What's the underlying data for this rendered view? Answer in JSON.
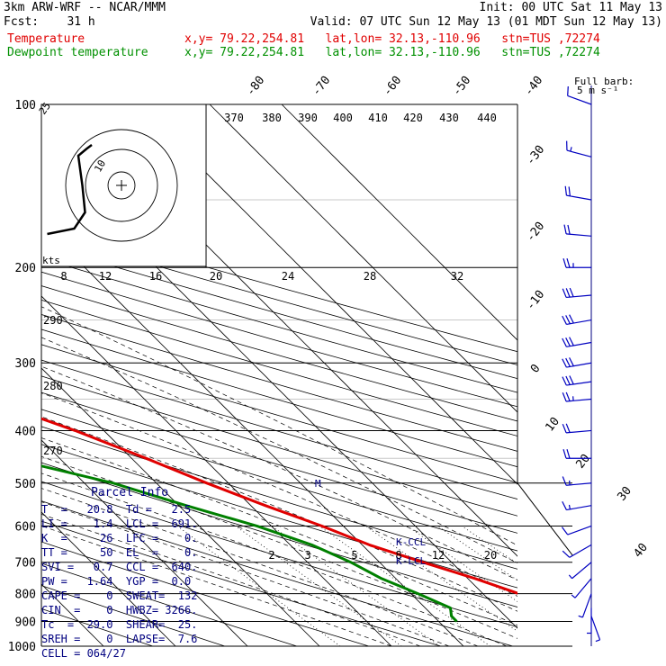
{
  "header": {
    "line1_left": "3km ARW-WRF -- NCAR/MMM",
    "line1_right": "Init: 00 UTC Sat 11 May 13",
    "line2_left": "Fcst:    31 h",
    "line2_right": "Valid: 07 UTC Sun 12 May 13 (01 MDT Sun 12 May 13)",
    "temp_label": "Temperature",
    "temp_info": "x,y= 79.22,254.81   lat,lon= 32.13,-110.96   stn=TUS ,72274",
    "dew_label": "Dewpoint temperature",
    "dew_info": "x,y= 79.22,254.81   lat,lon= 32.13,-110.96   stn=TUS ,72274"
  },
  "barb_legend": {
    "line1": "Full barb:",
    "line2": "5 m s⁻¹"
  },
  "parcel_info": {
    "title": "Parcel Info",
    "rows": [
      "T  =   20.8  Td =   2.5",
      "LI =    1.4  LCL =  691.",
      "K  =     26  LFC =    0.",
      "TT =     50  EL  =    0.",
      "SVI =   0.7  CCL =  640.",
      "PW =   1.64  YGP =  0.0",
      "CAPE =    0  SWEAT=  132",
      "CIN  =    0  HWBZ= 3266.",
      "Tc  =  29.0  SHEAR=  25.",
      "SREH =    0  LAPSE=  7.6",
      "CELL = 064/27"
    ]
  },
  "chart_data": {
    "type": "skew-t",
    "pressure_labels": [
      "100",
      "200",
      "300",
      "400",
      "500",
      "600",
      "700",
      "800",
      "900",
      "1000"
    ],
    "isotherm_labels": [
      "-80",
      "-70",
      "-60",
      "-50",
      "-40",
      "-30",
      "-20",
      "-10",
      "0",
      "10",
      "20",
      "30",
      "40"
    ],
    "theta_labels": [
      "370",
      "380",
      "390",
      "400",
      "410",
      "420",
      "430",
      "440"
    ],
    "theta_low_labels": [
      "290",
      "280",
      "270"
    ],
    "mixing_ratio_labels": [
      "2",
      "3",
      "5",
      "8",
      "12",
      "20"
    ],
    "ccl_label": "K-CCL",
    "lcl_label": "K-LCL",
    "m_label": "M",
    "hodograph": {
      "speed_unit_label": "kts",
      "ring_labels": [
        "25",
        "10"
      ],
      "bottom_scale": [
        "8",
        "12",
        "16",
        "20",
        "24",
        "28",
        "32"
      ]
    },
    "temperature": {
      "color": "#e00000",
      "points": [
        {
          "p": 100,
          "t": -62
        },
        {
          "p": 125,
          "t": -58
        },
        {
          "p": 150,
          "t": -59
        },
        {
          "p": 175,
          "t": -60
        },
        {
          "p": 200,
          "t": -58
        },
        {
          "p": 230,
          "t": -54
        },
        {
          "p": 250,
          "t": -50
        },
        {
          "p": 300,
          "t": -41
        },
        {
          "p": 350,
          "t": -32
        },
        {
          "p": 400,
          "t": -24
        },
        {
          "p": 450,
          "t": -18
        },
        {
          "p": 500,
          "t": -13
        },
        {
          "p": 550,
          "t": -8
        },
        {
          "p": 600,
          "t": -3
        },
        {
          "p": 650,
          "t": 1
        },
        {
          "p": 700,
          "t": 6
        },
        {
          "p": 750,
          "t": 11
        },
        {
          "p": 800,
          "t": 15
        },
        {
          "p": 850,
          "t": 18
        },
        {
          "p": 880,
          "t": 20.8
        },
        {
          "p": 900,
          "t": 20.8
        }
      ]
    },
    "dewpoint": {
      "color": "#008000",
      "points": [
        {
          "p": 100,
          "t": -80
        },
        {
          "p": 130,
          "t": -82
        },
        {
          "p": 150,
          "t": -83
        },
        {
          "p": 175,
          "t": -85
        },
        {
          "p": 200,
          "t": -86
        },
        {
          "p": 230,
          "t": -84
        },
        {
          "p": 250,
          "t": -81
        },
        {
          "p": 300,
          "t": -73
        },
        {
          "p": 350,
          "t": -70
        },
        {
          "p": 400,
          "t": -63
        },
        {
          "p": 450,
          "t": -37
        },
        {
          "p": 500,
          "t": -26
        },
        {
          "p": 550,
          "t": -19
        },
        {
          "p": 600,
          "t": -12
        },
        {
          "p": 650,
          "t": -7
        },
        {
          "p": 700,
          "t": -4
        },
        {
          "p": 750,
          "t": -2
        },
        {
          "p": 800,
          "t": 1
        },
        {
          "p": 850,
          "t": 3.5
        },
        {
          "p": 880,
          "t": 2.5
        },
        {
          "p": 900,
          "t": 2.5
        }
      ]
    },
    "hodograph_trace": [
      [
        -5.5,
        -3.6
      ],
      [
        -3.5,
        -3.2
      ],
      [
        -2.7,
        -2.0
      ],
      [
        -2.9,
        0.0
      ],
      [
        -3.2,
        2.2
      ],
      [
        -2.6,
        2.7
      ],
      [
        -2.2,
        3.0
      ]
    ],
    "wind_barbs": [
      {
        "p": 100,
        "dir": 290,
        "spd": 6
      },
      {
        "p": 125,
        "dir": 285,
        "spd": 9
      },
      {
        "p": 150,
        "dir": 280,
        "spd": 10
      },
      {
        "p": 175,
        "dir": 275,
        "spd": 11
      },
      {
        "p": 200,
        "dir": 270,
        "spd": 13
      },
      {
        "p": 225,
        "dir": 265,
        "spd": 15
      },
      {
        "p": 250,
        "dir": 260,
        "spd": 15
      },
      {
        "p": 275,
        "dir": 260,
        "spd": 16
      },
      {
        "p": 300,
        "dir": 260,
        "spd": 16
      },
      {
        "p": 325,
        "dir": 262,
        "spd": 15
      },
      {
        "p": 350,
        "dir": 265,
        "spd": 14
      },
      {
        "p": 400,
        "dir": 265,
        "spd": 12
      },
      {
        "p": 450,
        "dir": 270,
        "spd": 11
      },
      {
        "p": 500,
        "dir": 265,
        "spd": 9
      },
      {
        "p": 550,
        "dir": 260,
        "spd": 8
      },
      {
        "p": 600,
        "dir": 250,
        "spd": 6
      },
      {
        "p": 650,
        "dir": 240,
        "spd": 5
      },
      {
        "p": 700,
        "dir": 230,
        "spd": 4
      },
      {
        "p": 750,
        "dir": 220,
        "spd": 3
      },
      {
        "p": 800,
        "dir": 200,
        "spd": 3
      },
      {
        "p": 850,
        "dir": 180,
        "spd": 3
      },
      {
        "p": 880,
        "dir": 160,
        "spd": 4
      }
    ]
  }
}
